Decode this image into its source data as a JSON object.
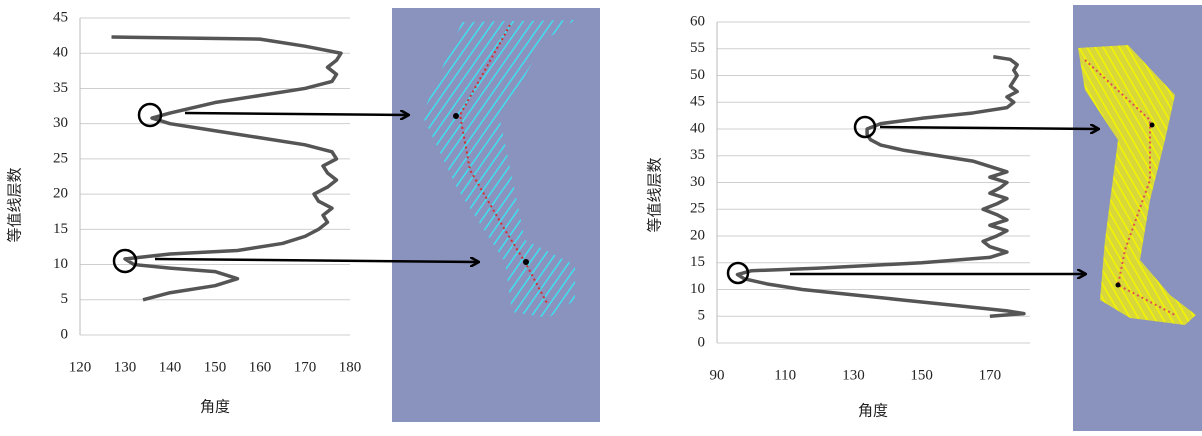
{
  "chart_data": [
    {
      "type": "line",
      "xlabel": "角度",
      "ylabel": "等值线层数",
      "xlim": [
        120,
        180
      ],
      "xticks": [
        120,
        130,
        140,
        150,
        160,
        170,
        180
      ],
      "ylim": [
        0,
        45
      ],
      "yticks": [
        0,
        5,
        10,
        15,
        20,
        25,
        30,
        35,
        40,
        45
      ],
      "grid": true,
      "series": [
        {
          "color": "#555555",
          "x": [
            134,
            140,
            150,
            155,
            150,
            140,
            132,
            130,
            140,
            155,
            165,
            170,
            173,
            175,
            174,
            176,
            173,
            172,
            175,
            177,
            175,
            174,
            177,
            176,
            170,
            160,
            150,
            140,
            136,
            140,
            150,
            160,
            170,
            176,
            177,
            175,
            177,
            178,
            170,
            160,
            127
          ],
          "values": [
            5,
            6,
            7,
            8,
            9,
            9.5,
            10,
            10.8,
            11.5,
            12,
            13,
            14,
            15,
            16,
            17,
            18,
            19,
            20,
            21,
            22,
            23,
            24,
            25,
            26,
            27,
            28,
            29,
            30,
            30.8,
            31.5,
            33,
            34,
            35,
            36,
            37,
            38,
            39,
            40,
            41,
            42,
            42.3
          ]
        }
      ]
    },
    {
      "type": "line",
      "xlabel": "角度",
      "ylabel": "等值线层数",
      "xlim": [
        90,
        180
      ],
      "xticks": [
        90,
        110,
        130,
        150,
        170
      ],
      "ylim": [
        0,
        60
      ],
      "yticks": [
        0,
        5,
        10,
        15,
        20,
        25,
        30,
        35,
        40,
        45,
        50,
        55,
        60
      ],
      "grid": true,
      "series": [
        {
          "color": "#555555",
          "x": [
            170,
            180,
            175,
            160,
            145,
            130,
            115,
            105,
            98,
            96,
            100,
            120,
            150,
            170,
            175,
            170,
            168,
            172,
            175,
            170,
            175,
            172,
            168,
            172,
            175,
            170,
            173,
            175,
            170,
            175,
            170,
            165,
            155,
            145,
            138,
            135,
            134,
            134,
            138,
            150,
            165,
            175,
            177,
            175,
            178,
            176,
            177,
            178,
            177,
            178,
            176,
            171
          ],
          "values": [
            5,
            5.5,
            6,
            7,
            8,
            9,
            10,
            11,
            12,
            12.8,
            13.5,
            14,
            15,
            16,
            17,
            18,
            19,
            20,
            21,
            22,
            23,
            24,
            25,
            26,
            27,
            28,
            29,
            30,
            31,
            32,
            33,
            34,
            35,
            36,
            37,
            38,
            39,
            40,
            41,
            42,
            43,
            44,
            45,
            46,
            47,
            48,
            49,
            50,
            51,
            52,
            53,
            53.5
          ]
        }
      ]
    }
  ]
}
